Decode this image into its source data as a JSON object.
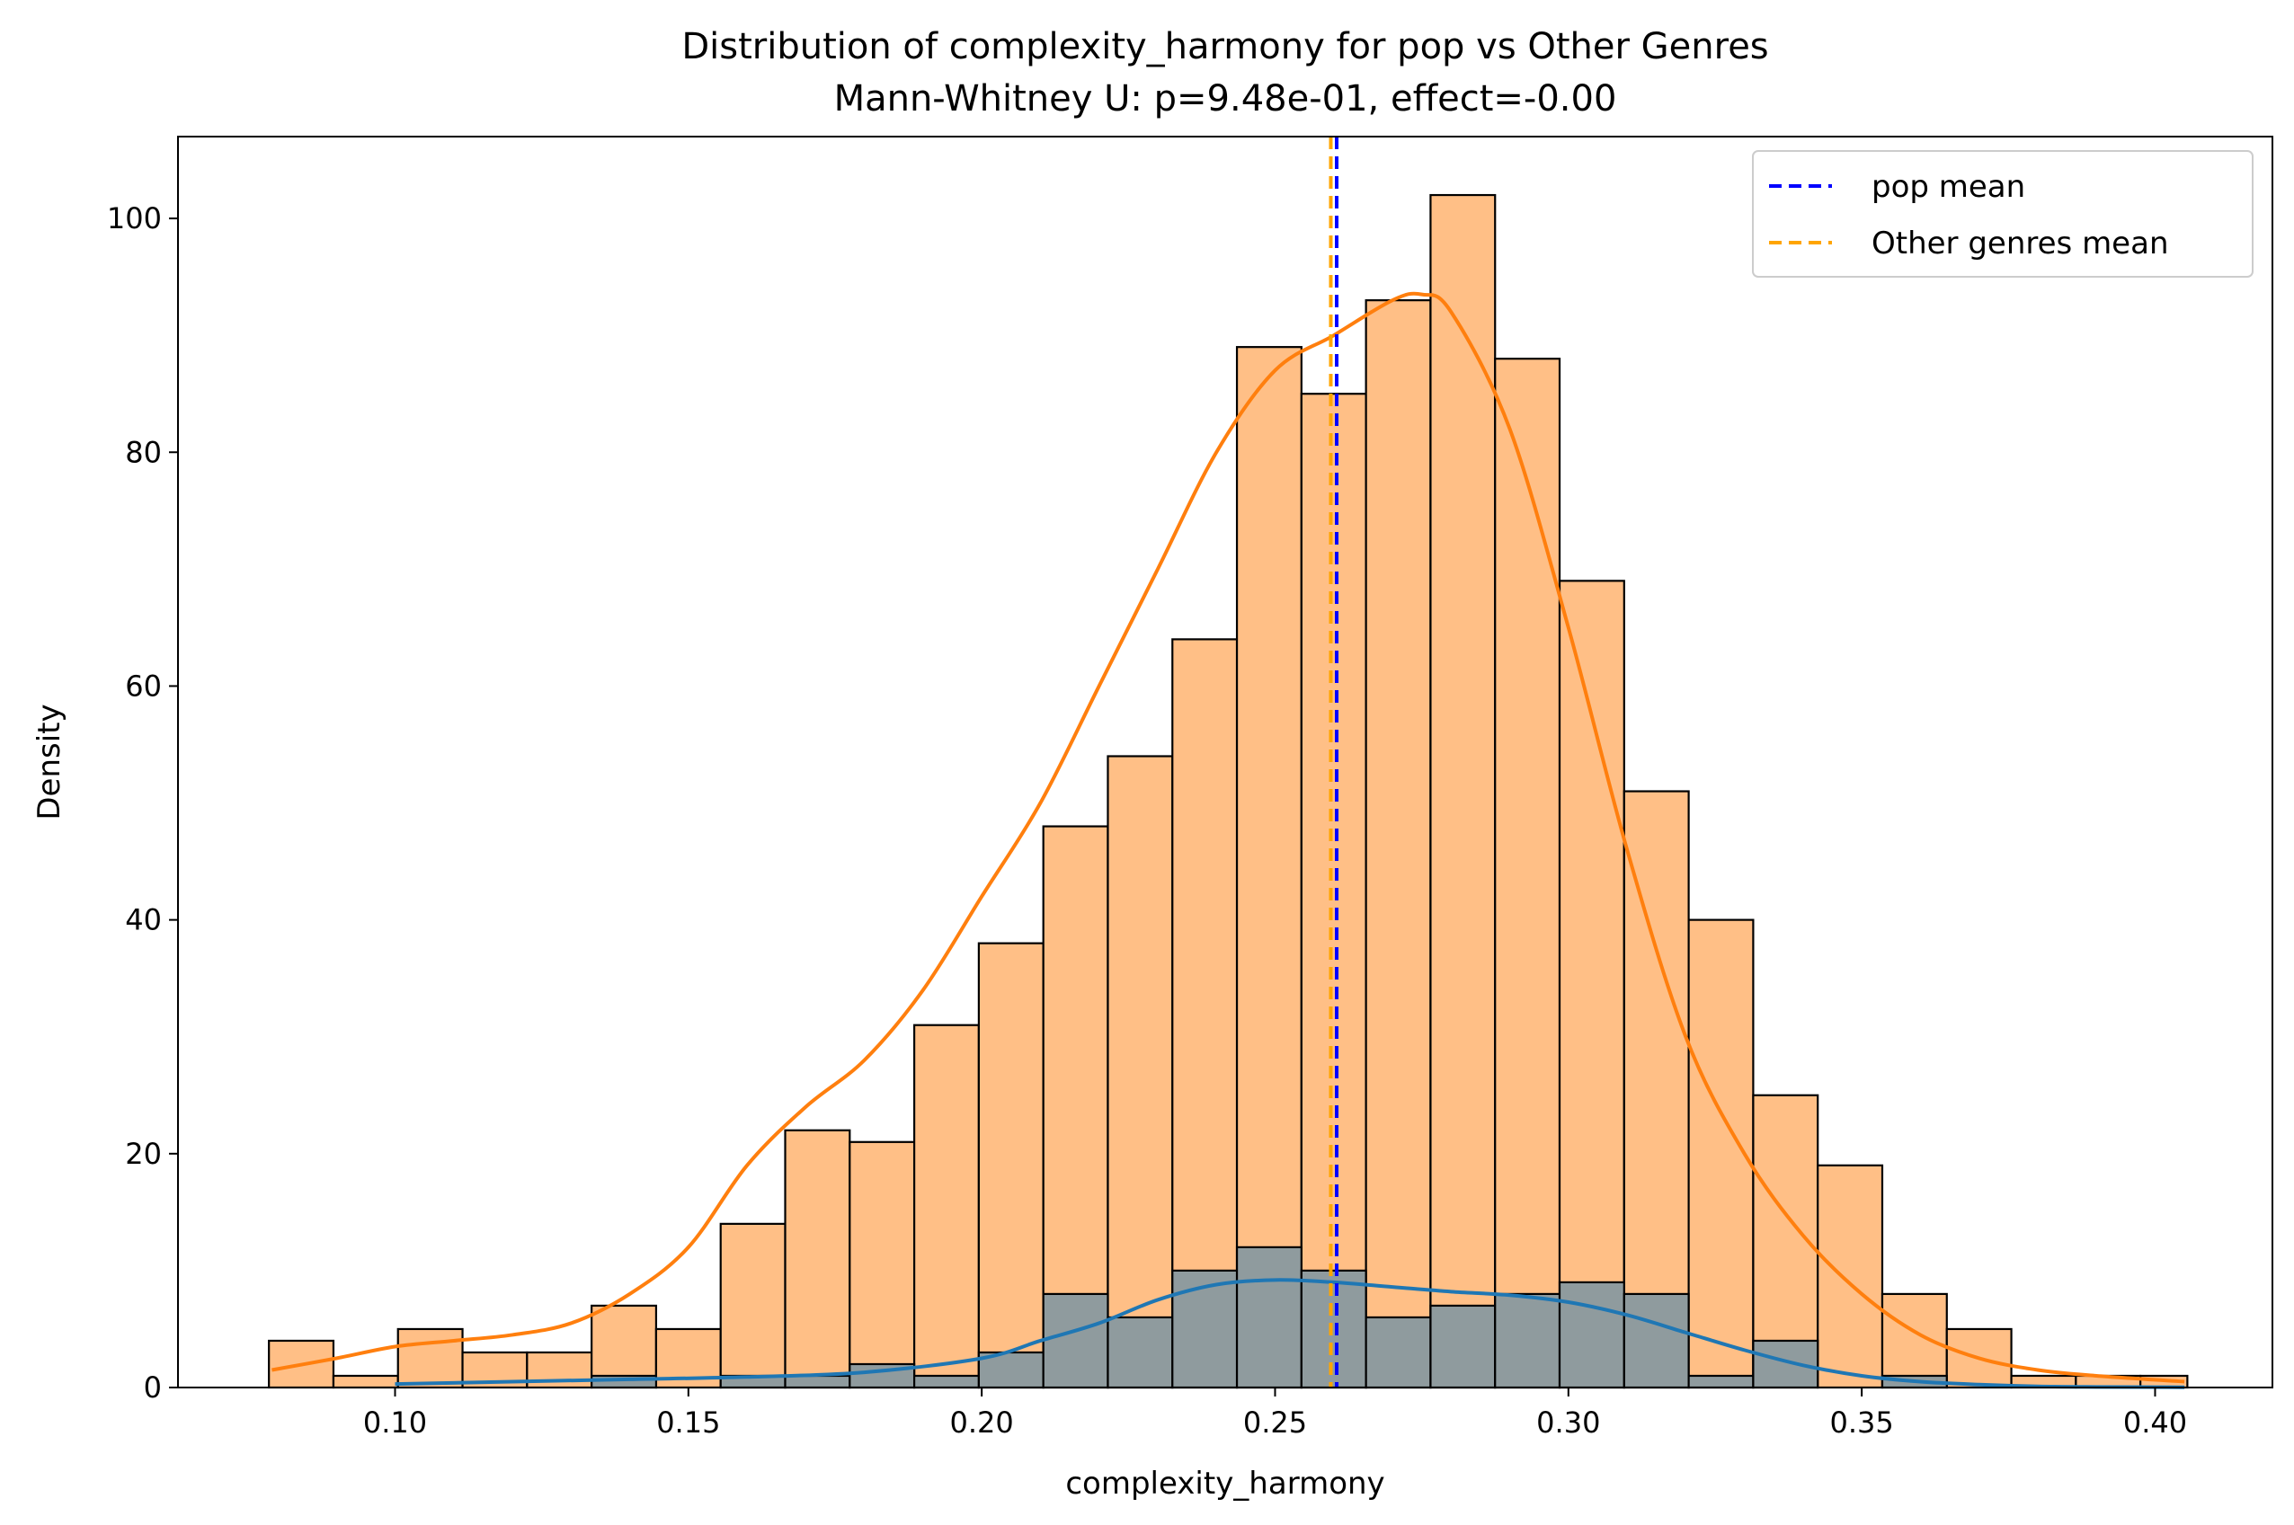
{
  "chart_data": {
    "type": "histogram",
    "title": "Distribution of complexity_harmony for pop vs Other Genres",
    "subtitle": "Mann-Whitney U: p=9.48e-01, effect=-0.00",
    "xlabel": "complexity_harmony",
    "ylabel": "Density",
    "xlim": [
      0.063,
      0.42
    ],
    "ylim": [
      0,
      107
    ],
    "xticks": [
      0.1,
      0.15,
      0.2,
      0.25,
      0.3,
      0.35,
      0.4
    ],
    "xtick_labels": [
      "0.10",
      "0.15",
      "0.20",
      "0.25",
      "0.30",
      "0.35",
      "0.40"
    ],
    "yticks": [
      0,
      20,
      40,
      60,
      80,
      100
    ],
    "ytick_labels": [
      "0",
      "20",
      "40",
      "60",
      "80",
      "100"
    ],
    "bin_edges": [
      0.0785,
      0.0895,
      0.1005,
      0.1115,
      0.1225,
      0.1335,
      0.1445,
      0.1555,
      0.1665,
      0.1775,
      0.1885,
      0.1995,
      0.2105,
      0.2215,
      0.2325,
      0.2435,
      0.2545,
      0.2655,
      0.2765,
      0.2875,
      0.2985,
      0.3095,
      0.3205,
      0.3315,
      0.3425,
      0.3535,
      0.3645,
      0.3755,
      0.3865,
      0.3975,
      0.4055
    ],
    "series": [
      {
        "name": "Other genres",
        "color": "#ffbf86",
        "counts": [
          4,
          1,
          5,
          3,
          3,
          7,
          5,
          14,
          22,
          21,
          31,
          38,
          48,
          54,
          64,
          89,
          85,
          93,
          102,
          88,
          69,
          51,
          40,
          25,
          19,
          8,
          5,
          1,
          1,
          1
        ],
        "kde_color": "#ff7f0e",
        "kde": {
          "x": [
            0.079,
            0.09,
            0.1,
            0.11,
            0.12,
            0.13,
            0.14,
            0.15,
            0.16,
            0.17,
            0.18,
            0.19,
            0.2,
            0.21,
            0.22,
            0.23,
            0.24,
            0.25,
            0.26,
            0.27,
            0.275,
            0.28,
            0.29,
            0.3,
            0.31,
            0.32,
            0.33,
            0.34,
            0.35,
            0.36,
            0.37,
            0.38,
            0.39,
            0.405
          ],
          "y": [
            1.5,
            2.5,
            3.5,
            4,
            4.5,
            5.5,
            8,
            12,
            19,
            24,
            28,
            34,
            42,
            50,
            60,
            70,
            80,
            87,
            90,
            93,
            93.5,
            92,
            82,
            65,
            46,
            30,
            20,
            13,
            8,
            4.5,
            2.5,
            1.5,
            1,
            0.5
          ]
        }
      },
      {
        "name": "pop",
        "color": "#8f9b9e",
        "counts": [
          0,
          0,
          0,
          0,
          0,
          1,
          0,
          1,
          1,
          2,
          1,
          3,
          8,
          6,
          10,
          12,
          10,
          6,
          7,
          8,
          9,
          8,
          1,
          4,
          0,
          1,
          0,
          0,
          0,
          0
        ],
        "kde_color": "#1f77b4",
        "kde": {
          "x": [
            0.1,
            0.12,
            0.14,
            0.16,
            0.18,
            0.2,
            0.21,
            0.22,
            0.23,
            0.24,
            0.25,
            0.26,
            0.27,
            0.28,
            0.29,
            0.3,
            0.31,
            0.32,
            0.33,
            0.34,
            0.35,
            0.36,
            0.37,
            0.38,
            0.39,
            0.405
          ],
          "y": [
            0.3,
            0.5,
            0.7,
            0.9,
            1.3,
            2.5,
            4,
            5.5,
            7.5,
            8.8,
            9.2,
            9,
            8.6,
            8.2,
            7.9,
            7.3,
            6.2,
            4.7,
            3.2,
            1.9,
            1,
            0.5,
            0.25,
            0.1,
            0.05,
            0.02
          ]
        }
      }
    ],
    "mean_lines": [
      {
        "label": "pop mean",
        "x": 0.2605,
        "color": "#0000ff",
        "style": "dashed"
      },
      {
        "label": "Other genres mean",
        "x": 0.2595,
        "color": "#ffa500",
        "style": "dashed"
      }
    ],
    "legend_position": "top-right",
    "grid": false
  }
}
